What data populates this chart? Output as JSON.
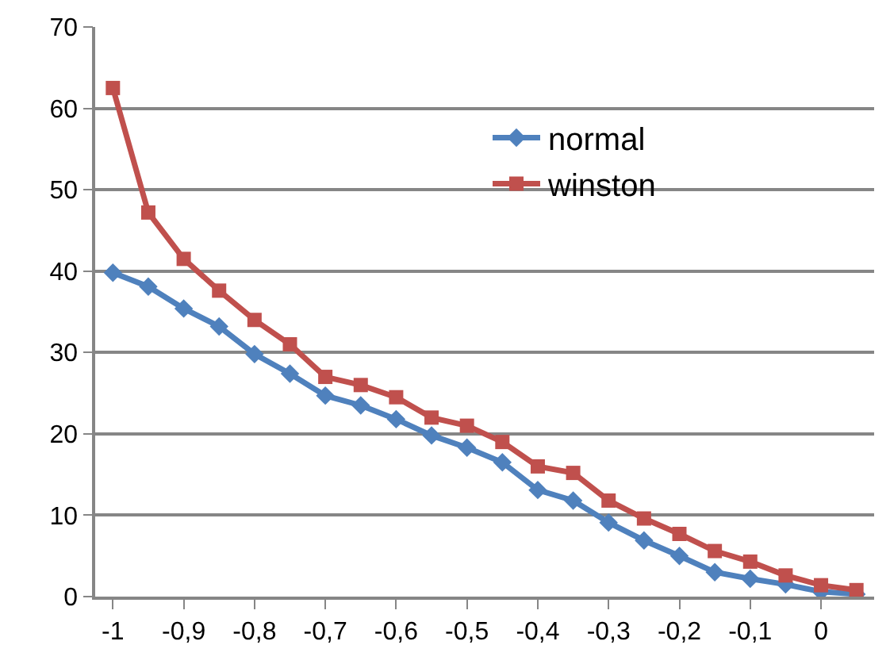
{
  "chart_data": {
    "type": "line",
    "categories": [
      "-1",
      null,
      "-0,9",
      null,
      "-0,8",
      null,
      "-0,7",
      null,
      "-0,6",
      null,
      "-0,5",
      null,
      "-0,4",
      null,
      "-0,3",
      null,
      "-0,2",
      null,
      "-0,1",
      null,
      "0",
      null
    ],
    "series": [
      {
        "name": "normal",
        "color": "#4f81bd",
        "marker": "diamond",
        "values": [
          39.8,
          38.1,
          35.4,
          33.2,
          29.8,
          27.4,
          24.7,
          23.5,
          21.8,
          19.8,
          18.3,
          16.5,
          13.1,
          11.8,
          9.1,
          6.9,
          5.0,
          3.0,
          2.2,
          1.5,
          0.6,
          0.3
        ]
      },
      {
        "name": "winston",
        "color": "#c0504d",
        "marker": "square",
        "values": [
          62.5,
          47.2,
          41.5,
          37.6,
          34.0,
          31.0,
          27.0,
          26.0,
          24.5,
          22.0,
          21.0,
          19.0,
          16.0,
          15.2,
          11.8,
          9.6,
          7.7,
          5.6,
          4.3,
          2.6,
          1.4,
          0.8
        ]
      }
    ],
    "ylim": [
      0,
      70
    ],
    "yticks": [
      0,
      10,
      20,
      30,
      40,
      50,
      60,
      70
    ],
    "grid": "y",
    "legend": "top right",
    "line_style": "solid"
  }
}
